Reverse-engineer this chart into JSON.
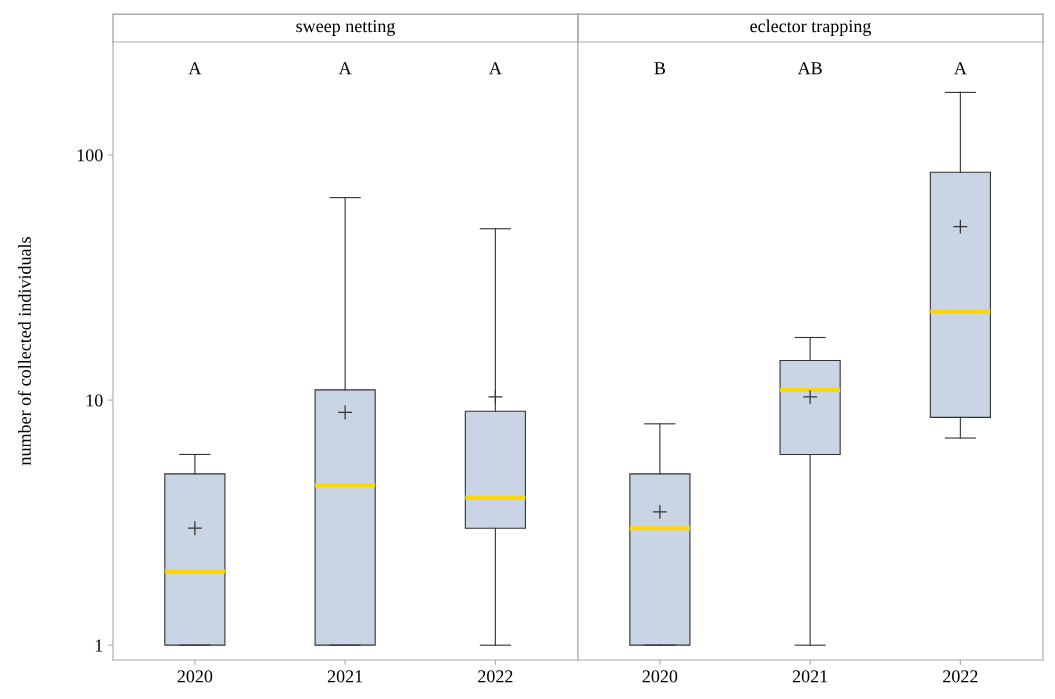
{
  "chart_data": [
    {
      "type": "box",
      "title": "sweep netting",
      "ylabel": "number of collected individuals",
      "categories": [
        "2020",
        "2021",
        "2022"
      ],
      "log": true,
      "ylim": [
        0.87,
        289
      ],
      "yticks": [
        1,
        10,
        100
      ],
      "grid": false,
      "annotations": [
        "A",
        "A",
        "A"
      ],
      "series": [
        {
          "color": "#c9d5e5",
          "boxes": [
            {
              "low": 1,
              "q1": 1,
              "median": 2,
              "q3": 5,
              "high": 6,
              "mean": 3
            },
            {
              "low": 1,
              "q1": 1,
              "median": 4.5,
              "q3": 11,
              "high": 67,
              "mean": 8.9
            },
            {
              "low": 1,
              "q1": 3,
              "median": 4,
              "q3": 9,
              "high": 50,
              "mean": 10.3
            }
          ]
        }
      ]
    },
    {
      "type": "box",
      "title": "eclector trapping",
      "categories": [
        "2020",
        "2021",
        "2022"
      ],
      "log": true,
      "ylim": [
        0.87,
        289
      ],
      "yticks": [
        1,
        10,
        100
      ],
      "tick_labels": "x",
      "grid": false,
      "annotations": [
        "B",
        "AB",
        "A"
      ],
      "series": [
        {
          "color": "#c9d5e5",
          "boxes": [
            {
              "low": 1,
              "q1": 1,
              "median": 3,
              "q3": 5,
              "high": 8,
              "mean": 3.5
            },
            {
              "low": 1,
              "q1": 6,
              "median": 11,
              "q3": 14.5,
              "high": 18,
              "mean": 10.3
            },
            {
              "low": 7,
              "q1": 8.5,
              "median": 23,
              "q3": 85,
              "high": 180,
              "mean": 51
            }
          ]
        }
      ]
    }
  ]
}
